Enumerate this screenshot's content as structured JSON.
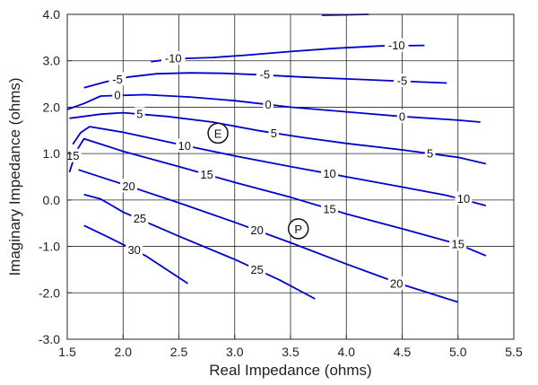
{
  "chart_data": {
    "type": "contour",
    "xlabel": "Real Impedance (ohms)",
    "ylabel": "Imaginary Impedance (ohms)",
    "xlim": [
      1.5,
      5.5
    ],
    "ylim": [
      -3.0,
      4.0
    ],
    "xticks": [
      1.5,
      2.0,
      2.5,
      3.0,
      3.5,
      4.0,
      4.5,
      5.0,
      5.5
    ],
    "yticks": [
      -3.0,
      -2.0,
      -1.0,
      0.0,
      1.0,
      2.0,
      3.0,
      4.0
    ],
    "xtick_labels": [
      "1.5",
      "2.0",
      "2.5",
      "3.0",
      "3.5",
      "4.0",
      "4.5",
      "5.0",
      "5.5"
    ],
    "ytick_labels": [
      "-3.0",
      "-2.0",
      "-1.0",
      "0.0",
      "1.0",
      "2.0",
      "3.0",
      "4.0"
    ],
    "grid": true,
    "line_color": "#0000cc",
    "lines": [
      {
        "level": "-10",
        "points": [
          [
            3.78,
            3.98
          ],
          [
            4.2,
            4.0
          ]
        ]
      },
      {
        "level": "-10",
        "points": [
          [
            2.25,
            2.98
          ],
          [
            2.38,
            3.02
          ]
        ]
      },
      {
        "level": "-10",
        "points": [
          [
            2.55,
            3.05
          ],
          [
            2.8,
            3.07
          ],
          [
            3.1,
            3.12
          ],
          [
            3.5,
            3.2
          ],
          [
            3.9,
            3.27
          ],
          [
            4.3,
            3.32
          ],
          [
            4.7,
            3.33
          ]
        ]
      },
      {
        "level": "-5",
        "points": [
          [
            1.65,
            2.42
          ],
          [
            1.85,
            2.55
          ],
          [
            2.05,
            2.65
          ],
          [
            2.3,
            2.72
          ],
          [
            2.6,
            2.74
          ],
          [
            2.9,
            2.73
          ],
          [
            3.2,
            2.7
          ],
          [
            3.6,
            2.65
          ],
          [
            4.0,
            2.61
          ],
          [
            4.5,
            2.56
          ],
          [
            4.9,
            2.52
          ]
        ]
      },
      {
        "level": "0",
        "points": [
          [
            1.5,
            1.95
          ],
          [
            1.65,
            2.08
          ],
          [
            1.8,
            2.24
          ],
          [
            2.2,
            2.27
          ],
          [
            2.6,
            2.22
          ],
          [
            3.0,
            2.14
          ],
          [
            3.5,
            2.0
          ],
          [
            4.0,
            1.9
          ],
          [
            4.5,
            1.8
          ],
          [
            5.0,
            1.72
          ],
          [
            5.2,
            1.68
          ]
        ]
      },
      {
        "level": "5",
        "points": [
          [
            1.52,
            1.76
          ],
          [
            1.8,
            1.85
          ],
          [
            2.0,
            1.88
          ],
          [
            2.4,
            1.8
          ],
          [
            2.8,
            1.68
          ],
          [
            3.2,
            1.5
          ],
          [
            3.6,
            1.35
          ],
          [
            4.0,
            1.22
          ],
          [
            4.5,
            1.08
          ],
          [
            5.0,
            0.92
          ],
          [
            5.25,
            0.78
          ]
        ]
      },
      {
        "level": "10",
        "points": [
          [
            1.55,
            1.2
          ],
          [
            1.62,
            1.45
          ],
          [
            1.7,
            1.58
          ],
          [
            2.0,
            1.46
          ],
          [
            2.5,
            1.2
          ],
          [
            3.0,
            0.95
          ],
          [
            3.5,
            0.72
          ],
          [
            4.0,
            0.5
          ],
          [
            4.5,
            0.28
          ],
          [
            4.9,
            0.1
          ],
          [
            5.25,
            -0.12
          ]
        ]
      },
      {
        "level": "15",
        "points": [
          [
            1.52,
            0.6
          ],
          [
            1.58,
            1.05
          ],
          [
            1.65,
            1.32
          ],
          [
            2.0,
            1.05
          ],
          [
            2.5,
            0.72
          ],
          [
            3.0,
            0.38
          ],
          [
            3.5,
            0.06
          ],
          [
            4.0,
            -0.3
          ],
          [
            4.5,
            -0.62
          ],
          [
            5.0,
            -0.95
          ],
          [
            5.25,
            -1.2
          ]
        ]
      },
      {
        "level": "20",
        "points": [
          [
            1.6,
            0.65
          ],
          [
            2.0,
            0.34
          ],
          [
            2.5,
            -0.06
          ],
          [
            3.0,
            -0.48
          ],
          [
            3.5,
            -0.92
          ],
          [
            4.0,
            -1.38
          ],
          [
            4.5,
            -1.82
          ],
          [
            5.0,
            -2.2
          ]
        ]
      },
      {
        "level": "25",
        "points": [
          [
            1.65,
            0.12
          ],
          [
            1.8,
            0.02
          ],
          [
            2.0,
            -0.26
          ],
          [
            2.5,
            -0.78
          ],
          [
            3.0,
            -1.28
          ],
          [
            3.4,
            -1.72
          ],
          [
            3.72,
            -2.13
          ]
        ]
      },
      {
        "level": "30",
        "points": [
          [
            1.65,
            -0.55
          ],
          [
            1.85,
            -0.78
          ],
          [
            2.2,
            -1.2
          ],
          [
            2.58,
            -1.8
          ]
        ]
      }
    ],
    "contour_labels": [
      {
        "text": "-10",
        "x": 2.45,
        "y": 3.05
      },
      {
        "text": "-10",
        "x": 4.45,
        "y": 3.33
      },
      {
        "text": "-5",
        "x": 1.95,
        "y": 2.6
      },
      {
        "text": "-5",
        "x": 3.27,
        "y": 2.7
      },
      {
        "text": "-5",
        "x": 4.5,
        "y": 2.57
      },
      {
        "text": "0",
        "x": 1.95,
        "y": 2.26
      },
      {
        "text": "0",
        "x": 3.3,
        "y": 2.06
      },
      {
        "text": "0",
        "x": 4.5,
        "y": 1.8
      },
      {
        "text": "5",
        "x": 2.15,
        "y": 1.85
      },
      {
        "text": "5",
        "x": 3.35,
        "y": 1.44
      },
      {
        "text": "5",
        "x": 4.75,
        "y": 1.0
      },
      {
        "text": "10",
        "x": 2.55,
        "y": 1.17
      },
      {
        "text": "10",
        "x": 3.85,
        "y": 0.57
      },
      {
        "text": "10",
        "x": 5.05,
        "y": 0.03
      },
      {
        "text": "15",
        "x": 1.55,
        "y": 0.95
      },
      {
        "text": "15",
        "x": 2.75,
        "y": 0.55
      },
      {
        "text": "15",
        "x": 3.85,
        "y": -0.2
      },
      {
        "text": "15",
        "x": 5.0,
        "y": -0.95
      },
      {
        "text": "20",
        "x": 2.05,
        "y": 0.3
      },
      {
        "text": "20",
        "x": 3.2,
        "y": -0.65
      },
      {
        "text": "20",
        "x": 4.45,
        "y": -1.8
      },
      {
        "text": "25",
        "x": 2.15,
        "y": -0.4
      },
      {
        "text": "25",
        "x": 3.2,
        "y": -1.5
      },
      {
        "text": "30",
        "x": 2.1,
        "y": -1.08
      }
    ],
    "markers": [
      {
        "text": "E",
        "x": 2.85,
        "y": 1.44
      },
      {
        "text": "P",
        "x": 3.57,
        "y": -0.62
      }
    ]
  }
}
